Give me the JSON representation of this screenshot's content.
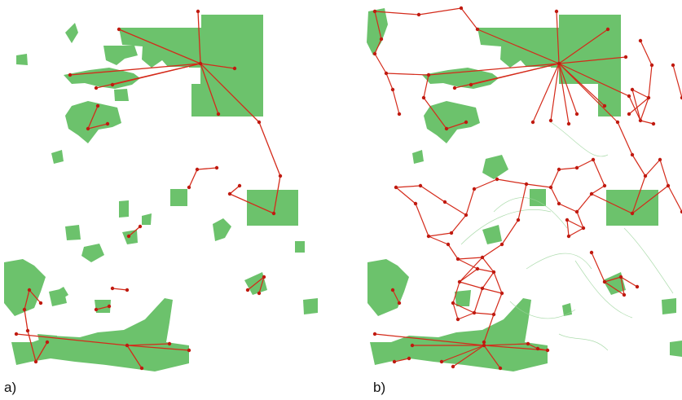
{
  "captions": {
    "a": "a)",
    "b": "b)"
  },
  "colors": {
    "habitat": "#6cc26c",
    "habitat_light": "#9ad49a",
    "link": "#d42a1a",
    "node": "#c01a10",
    "background": "#ffffff"
  },
  "icons": {
    "habitat_patch": "green-patch-shape",
    "connection": "red-line",
    "node": "red-dot"
  }
}
